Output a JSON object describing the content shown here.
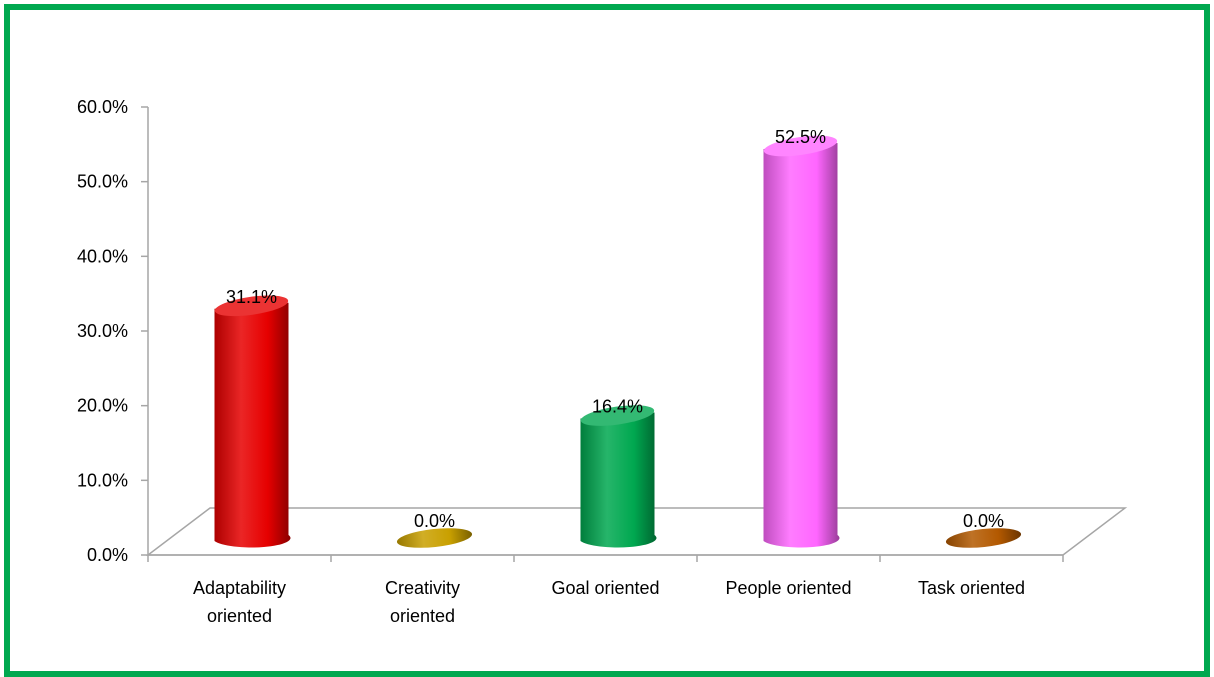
{
  "chart_data": {
    "type": "bar",
    "categories": [
      [
        "Adaptability",
        "oriented"
      ],
      [
        "Creativity",
        "oriented"
      ],
      [
        "Goal oriented"
      ],
      [
        "People oriented"
      ],
      [
        "Task oriented"
      ]
    ],
    "values": [
      31.1,
      0.0,
      16.4,
      52.5,
      0.0
    ],
    "data_labels": [
      "31.1%",
      "0.0%",
      "16.4%",
      "52.5%",
      "0.0%"
    ],
    "colors": [
      "#e60000",
      "#c9a000",
      "#00a850",
      "#ff66ff",
      "#b35900"
    ],
    "ytick_labels": [
      "0.0%",
      "10.0%",
      "20.0%",
      "30.0%",
      "40.0%",
      "50.0%",
      "60.0%"
    ],
    "ylim": [
      0,
      60
    ],
    "grid": false,
    "title": "",
    "xlabel": "",
    "ylabel": "",
    "frame_color": "#00a84f"
  }
}
